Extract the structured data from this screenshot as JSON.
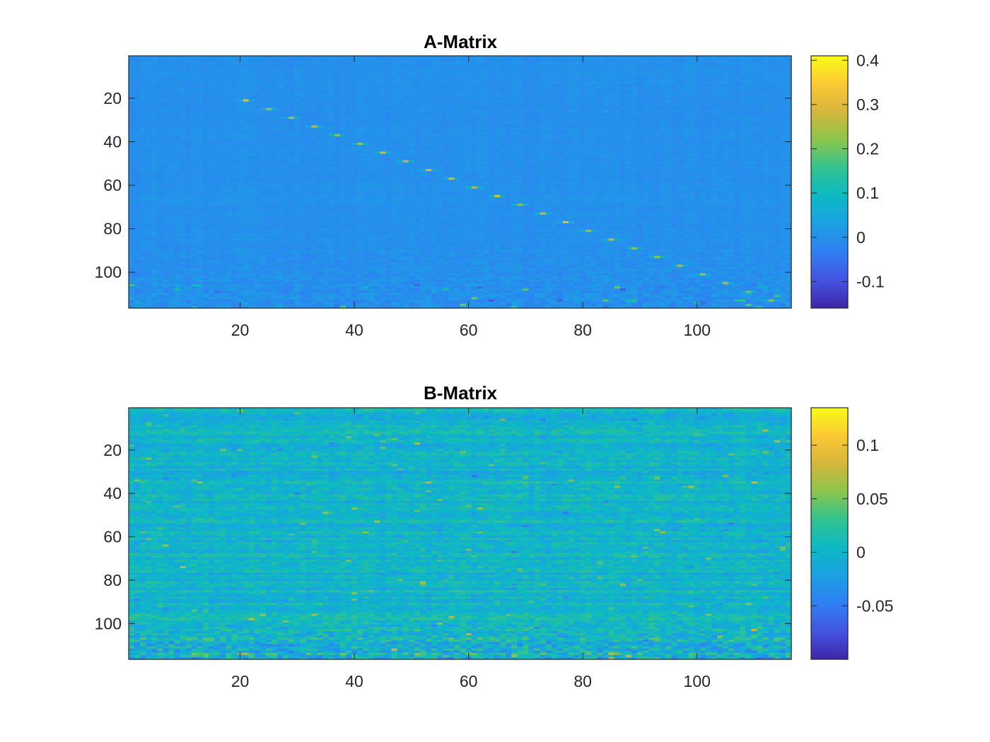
{
  "chart_data": [
    {
      "type": "heatmap",
      "title": "A-Matrix",
      "rows": 116,
      "cols": 116,
      "x_ticks": [
        20,
        40,
        60,
        80,
        100
      ],
      "y_ticks": [
        20,
        40,
        60,
        80,
        100
      ],
      "xlim": [
        0.5,
        116.5
      ],
      "ylim": [
        0.5,
        116.5
      ],
      "y_direction": "reverse",
      "color_limits": [
        -0.16,
        0.41
      ],
      "colorbar_ticks": [
        {
          "value": 0.4,
          "label": "0.4"
        },
        {
          "value": 0.3,
          "label": "0.3"
        },
        {
          "value": 0.2,
          "label": "0.2"
        },
        {
          "value": 0.1,
          "label": "0.1"
        },
        {
          "value": 0,
          "label": "0"
        },
        {
          "value": -0.1,
          "label": "-0.1"
        }
      ],
      "colormap": "parula",
      "background_value": 0.0,
      "diagonal_band": {
        "start_index": 21,
        "end_index": 113,
        "step": 4,
        "peak_value": 0.3
      },
      "noise_amplitude": 0.02,
      "grid": false
    },
    {
      "type": "heatmap",
      "title": "B-Matrix",
      "rows": 116,
      "cols": 116,
      "x_ticks": [
        20,
        40,
        60,
        80,
        100
      ],
      "y_ticks": [
        20,
        40,
        60,
        80,
        100
      ],
      "xlim": [
        0.5,
        116.5
      ],
      "ylim": [
        0.5,
        116.5
      ],
      "y_direction": "reverse",
      "color_limits": [
        -0.1,
        0.135
      ],
      "colorbar_ticks": [
        {
          "value": 0.1,
          "label": "0.1"
        },
        {
          "value": 0.05,
          "label": "0.05"
        },
        {
          "value": 0,
          "label": "0"
        },
        {
          "value": -0.05,
          "label": "-0.05"
        }
      ],
      "colormap": "parula",
      "background_value": 0.0,
      "noise_amplitude": 0.03,
      "grid": false
    }
  ],
  "colors": {
    "parula_stops": [
      "#3e26a8",
      "#4454e1",
      "#2f7ff3",
      "#1ca0e4",
      "#0cb9c4",
      "#32c38f",
      "#8bc54c",
      "#d5b63c",
      "#fcc935",
      "#f9fb15"
    ],
    "axis_color": "#262626"
  }
}
